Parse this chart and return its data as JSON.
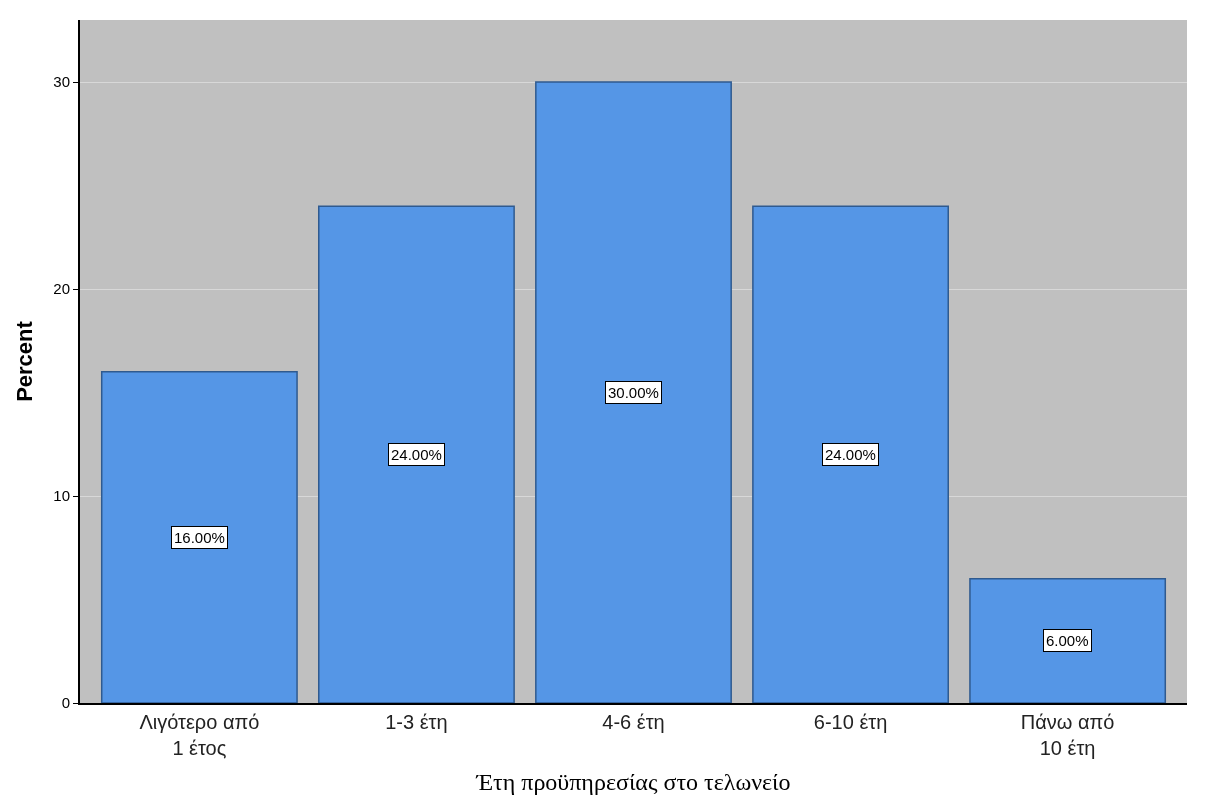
{
  "chart_data": {
    "type": "bar",
    "xlabel": "Έτη προϋπηρεσίας στο τελωνείο",
    "ylabel": "Percent",
    "categories": [
      "Λιγότερο από\n1 έτος",
      "1-3 έτη",
      "4-6 έτη",
      "6-10 έτη",
      "Πάνω από\n10 έτη"
    ],
    "values": [
      16,
      24,
      30,
      24,
      6
    ],
    "value_labels": [
      "16.00%",
      "24.00%",
      "30.00%",
      "24.00%",
      "6.00%"
    ],
    "color": "#5596e6",
    "ylim": [
      0,
      33
    ],
    "yticks": [
      0,
      10,
      20,
      30
    ],
    "grid": "y"
  }
}
